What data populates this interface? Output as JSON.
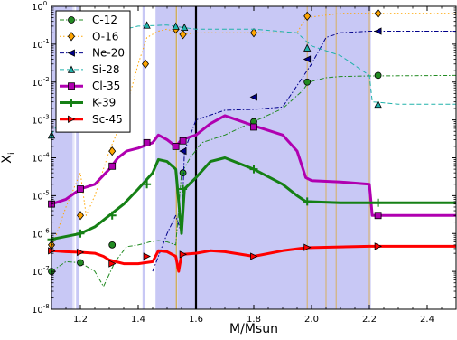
{
  "chart_data": {
    "type": "line",
    "title": "",
    "xlabel": "M/Msun",
    "ylabel": "X",
    "ylabel_sub": "i",
    "xlim": [
      1.1,
      2.5
    ],
    "ylim_log10": [
      -8,
      0
    ],
    "xscale": "linear",
    "yscale": "log",
    "grid": false,
    "legend_position": "upper-left",
    "x_ticks": [
      {
        "value": 1.2,
        "label": "1.2"
      },
      {
        "value": 1.4,
        "label": "1.4"
      },
      {
        "value": 1.6,
        "label": "1.6"
      },
      {
        "value": 1.8,
        "label": "1.8"
      },
      {
        "value": 2.0,
        "label": "2.0"
      },
      {
        "value": 2.2,
        "label": "2.2"
      },
      {
        "value": 2.4,
        "label": "2.4"
      }
    ],
    "y_ticks": [
      {
        "exp": -8,
        "label": "10",
        "sup": "-8"
      },
      {
        "exp": -7,
        "label": "10",
        "sup": "-7"
      },
      {
        "exp": -6,
        "label": "10",
        "sup": "-6"
      },
      {
        "exp": -5,
        "label": "10",
        "sup": "-5"
      },
      {
        "exp": -4,
        "label": "10",
        "sup": "-4"
      },
      {
        "exp": -3,
        "label": "10",
        "sup": "-3"
      },
      {
        "exp": -2,
        "label": "10",
        "sup": "-2"
      },
      {
        "exp": -1,
        "label": "10",
        "sup": "-1"
      },
      {
        "exp": 0,
        "label": "10",
        "sup": "0"
      }
    ],
    "shaded_regions": [
      {
        "x0": 1.1,
        "x1": 1.173,
        "color": "#c8c8f5"
      },
      {
        "x0": 1.173,
        "x1": 1.18,
        "color": "#e6e6fa"
      },
      {
        "x0": 1.185,
        "x1": 1.195,
        "color": "#c8c8f5"
      },
      {
        "x0": 1.415,
        "x1": 1.425,
        "color": "#c8c8f5"
      },
      {
        "x0": 1.46,
        "x1": 1.53,
        "color": "#c8c8f5"
      },
      {
        "x0": 1.535,
        "x1": 2.205,
        "color": "#c8c8f5"
      }
    ],
    "vertical_lines": [
      {
        "x": 1.532,
        "color": "#c8a040",
        "width": 1.2
      },
      {
        "x": 1.6,
        "color": "#000000",
        "width": 2.2
      },
      {
        "x": 1.985,
        "color": "#d8b060",
        "width": 1
      },
      {
        "x": 2.05,
        "color": "#d8b060",
        "width": 1
      },
      {
        "x": 2.085,
        "color": "#d8b060",
        "width": 1
      },
      {
        "x": 2.2,
        "color": "#d8b060",
        "width": 1
      }
    ],
    "series": [
      {
        "name": "C-12",
        "color": "#228B22",
        "style": "dash-dot",
        "width": 1,
        "marker": "circle",
        "points": [
          [
            1.1,
            1e-07
          ],
          [
            1.15,
            1.8e-07
          ],
          [
            1.2,
            1.7e-07
          ],
          [
            1.25,
            1e-07
          ],
          [
            1.28,
            4e-08
          ],
          [
            1.32,
            1.8e-07
          ],
          [
            1.36,
            4.5e-07
          ],
          [
            1.4,
            5e-07
          ],
          [
            1.44,
            6e-07
          ],
          [
            1.47,
            6.5e-07
          ],
          [
            1.5,
            6e-07
          ],
          [
            1.53,
            5e-07
          ],
          [
            1.55,
            4e-05
          ],
          [
            1.58,
            0.0001
          ],
          [
            1.62,
            0.00025
          ],
          [
            1.7,
            0.0004
          ],
          [
            1.8,
            0.0009
          ],
          [
            1.9,
            0.002
          ],
          [
            1.97,
            0.006
          ],
          [
            1.99,
            0.01
          ],
          [
            2.05,
            0.013
          ],
          [
            2.1,
            0.014
          ],
          [
            2.2,
            0.0145
          ],
          [
            2.5,
            0.015
          ]
        ],
        "marker_points": [
          [
            1.1,
            1e-07
          ],
          [
            1.2,
            1.7e-07
          ],
          [
            1.31,
            5e-07
          ],
          [
            1.555,
            4e-05
          ],
          [
            1.8,
            0.0009
          ],
          [
            1.985,
            0.01
          ],
          [
            2.23,
            0.015
          ]
        ]
      },
      {
        "name": "O-16",
        "color": "#FFA500",
        "style": "dotted",
        "width": 1,
        "marker": "diamond",
        "points": [
          [
            1.1,
            4e-07
          ],
          [
            1.15,
            5e-06
          ],
          [
            1.2,
            4e-05
          ],
          [
            1.22,
            3e-06
          ],
          [
            1.25,
            1e-05
          ],
          [
            1.3,
            0.00015
          ],
          [
            1.35,
            0.0012
          ],
          [
            1.4,
            0.03
          ],
          [
            1.43,
            0.15
          ],
          [
            1.47,
            0.22
          ],
          [
            1.5,
            0.25
          ],
          [
            1.55,
            0.18
          ],
          [
            1.6,
            0.2
          ],
          [
            1.8,
            0.2
          ],
          [
            1.95,
            0.2
          ],
          [
            1.98,
            0.5
          ],
          [
            2.1,
            0.65
          ],
          [
            2.5,
            0.65
          ]
        ],
        "marker_points": [
          [
            1.1,
            5e-07
          ],
          [
            1.2,
            3e-06
          ],
          [
            1.31,
            0.00015
          ],
          [
            1.425,
            0.03
          ],
          [
            1.53,
            0.25
          ],
          [
            1.555,
            0.18
          ],
          [
            1.8,
            0.2
          ],
          [
            1.985,
            0.55
          ],
          [
            2.23,
            0.65
          ]
        ]
      },
      {
        "name": "Ne-20",
        "color": "#00008B",
        "style": "dash-dot",
        "width": 1,
        "marker": "triangle-left",
        "points": [
          [
            1.45,
            1e-07
          ],
          [
            1.5,
            1e-06
          ],
          [
            1.53,
            3e-06
          ],
          [
            1.55,
            1e-06
          ],
          [
            1.56,
            0.00015
          ],
          [
            1.6,
            0.001
          ],
          [
            1.7,
            0.0018
          ],
          [
            1.8,
            0.0019
          ],
          [
            1.9,
            0.0022
          ],
          [
            2.0,
            0.03
          ],
          [
            2.05,
            0.15
          ],
          [
            2.1,
            0.2
          ],
          [
            2.2,
            0.22
          ],
          [
            2.5,
            0.22
          ]
        ],
        "marker_points": [
          [
            1.555,
            0.00015
          ],
          [
            1.8,
            0.004
          ],
          [
            1.985,
            0.04
          ],
          [
            2.23,
            0.22
          ]
        ]
      },
      {
        "name": "Si-28",
        "color": "#20B2AA",
        "style": "dashed",
        "width": 1,
        "marker": "triangle-up",
        "points": [
          [
            1.1,
            0.0004
          ],
          [
            1.2,
            0.01
          ],
          [
            1.3,
            0.2
          ],
          [
            1.4,
            0.3
          ],
          [
            1.5,
            0.32
          ],
          [
            1.55,
            0.28
          ],
          [
            1.6,
            0.25
          ],
          [
            1.8,
            0.25
          ],
          [
            1.95,
            0.2
          ],
          [
            2.0,
            0.09
          ],
          [
            2.1,
            0.05
          ],
          [
            2.2,
            0.015
          ],
          [
            2.21,
            0.003
          ],
          [
            2.3,
            0.0026
          ],
          [
            2.5,
            0.0026
          ]
        ],
        "marker_points": [
          [
            1.1,
            0.0004
          ],
          [
            1.43,
            0.32
          ],
          [
            1.53,
            0.3
          ],
          [
            1.56,
            0.28
          ],
          [
            1.985,
            0.08
          ],
          [
            2.23,
            0.0026
          ]
        ]
      },
      {
        "name": "Cl-35",
        "color": "#b000b0",
        "style": "solid",
        "width": 3,
        "marker": "square",
        "points": [
          [
            1.1,
            6e-06
          ],
          [
            1.15,
            8e-06
          ],
          [
            1.2,
            1.5e-05
          ],
          [
            1.25,
            2e-05
          ],
          [
            1.3,
            5e-05
          ],
          [
            1.33,
            0.0001
          ],
          [
            1.36,
            0.00015
          ],
          [
            1.4,
            0.00018
          ],
          [
            1.45,
            0.00025
          ],
          [
            1.47,
            0.0004
          ],
          [
            1.5,
            0.0003
          ],
          [
            1.53,
            0.0002
          ],
          [
            1.55,
            0.0003
          ],
          [
            1.6,
            0.0004
          ],
          [
            1.65,
            0.0008
          ],
          [
            1.7,
            0.0013
          ],
          [
            1.8,
            0.0007
          ],
          [
            1.9,
            0.0004
          ],
          [
            1.95,
            0.00015
          ],
          [
            1.98,
            3e-05
          ],
          [
            2.0,
            2.5e-05
          ],
          [
            2.1,
            2.3e-05
          ],
          [
            2.2,
            2e-05
          ],
          [
            2.21,
            3e-06
          ],
          [
            2.3,
            3e-06
          ],
          [
            2.5,
            3e-06
          ]
        ],
        "marker_points": [
          [
            1.1,
            6e-06
          ],
          [
            1.2,
            1.5e-05
          ],
          [
            1.31,
            6e-05
          ],
          [
            1.43,
            0.00025
          ],
          [
            1.53,
            0.0002
          ],
          [
            1.555,
            0.00028
          ],
          [
            1.8,
            0.00065
          ],
          [
            2.23,
            3e-06
          ]
        ]
      },
      {
        "name": "K-39",
        "color": "#158015",
        "style": "solid",
        "width": 3,
        "marker": "plus",
        "points": [
          [
            1.1,
            7e-07
          ],
          [
            1.2,
            1e-06
          ],
          [
            1.25,
            1.5e-06
          ],
          [
            1.3,
            3e-06
          ],
          [
            1.35,
            6e-06
          ],
          [
            1.4,
            1.5e-05
          ],
          [
            1.45,
            4e-05
          ],
          [
            1.47,
            9e-05
          ],
          [
            1.5,
            8e-05
          ],
          [
            1.53,
            5e-05
          ],
          [
            1.55,
            1e-06
          ],
          [
            1.56,
            1.5e-05
          ],
          [
            1.6,
            3e-05
          ],
          [
            1.65,
            8e-05
          ],
          [
            1.7,
            0.0001
          ],
          [
            1.8,
            5e-05
          ],
          [
            1.9,
            2e-05
          ],
          [
            1.95,
            1e-05
          ],
          [
            1.98,
            7e-06
          ],
          [
            2.1,
            6.5e-06
          ],
          [
            2.5,
            6.5e-06
          ]
        ],
        "marker_points": [
          [
            1.1,
            7e-07
          ],
          [
            1.2,
            1e-06
          ],
          [
            1.31,
            3e-06
          ],
          [
            1.43,
            2e-05
          ],
          [
            1.555,
            1.5e-05
          ],
          [
            1.8,
            5e-05
          ],
          [
            1.985,
            7e-06
          ],
          [
            2.23,
            6.5e-06
          ]
        ]
      },
      {
        "name": "Sc-45",
        "color": "#ff0000",
        "style": "solid",
        "width": 3,
        "marker": "triangle-right",
        "points": [
          [
            1.1,
            3.5e-07
          ],
          [
            1.15,
            3.3e-07
          ],
          [
            1.2,
            3.2e-07
          ],
          [
            1.25,
            3e-07
          ],
          [
            1.28,
            2.5e-07
          ],
          [
            1.3,
            2e-07
          ],
          [
            1.35,
            1.6e-07
          ],
          [
            1.4,
            1.6e-07
          ],
          [
            1.45,
            1.8e-07
          ],
          [
            1.47,
            3.5e-07
          ],
          [
            1.5,
            3.3e-07
          ],
          [
            1.53,
            2.5e-07
          ],
          [
            1.54,
            1e-07
          ],
          [
            1.55,
            2.8e-07
          ],
          [
            1.6,
            3e-07
          ],
          [
            1.65,
            3.5e-07
          ],
          [
            1.7,
            3.3e-07
          ],
          [
            1.8,
            2.5e-07
          ],
          [
            1.9,
            3.5e-07
          ],
          [
            1.98,
            4.2e-07
          ],
          [
            2.2,
            4.6e-07
          ],
          [
            2.5,
            4.6e-07
          ]
        ],
        "marker_points": [
          [
            1.1,
            3.5e-07
          ],
          [
            1.2,
            3.2e-07
          ],
          [
            1.31,
            1.6e-07
          ],
          [
            1.43,
            2.5e-07
          ],
          [
            1.555,
            2.8e-07
          ],
          [
            1.8,
            2.5e-07
          ],
          [
            1.985,
            4.3e-07
          ],
          [
            2.23,
            4.6e-07
          ]
        ]
      }
    ]
  }
}
